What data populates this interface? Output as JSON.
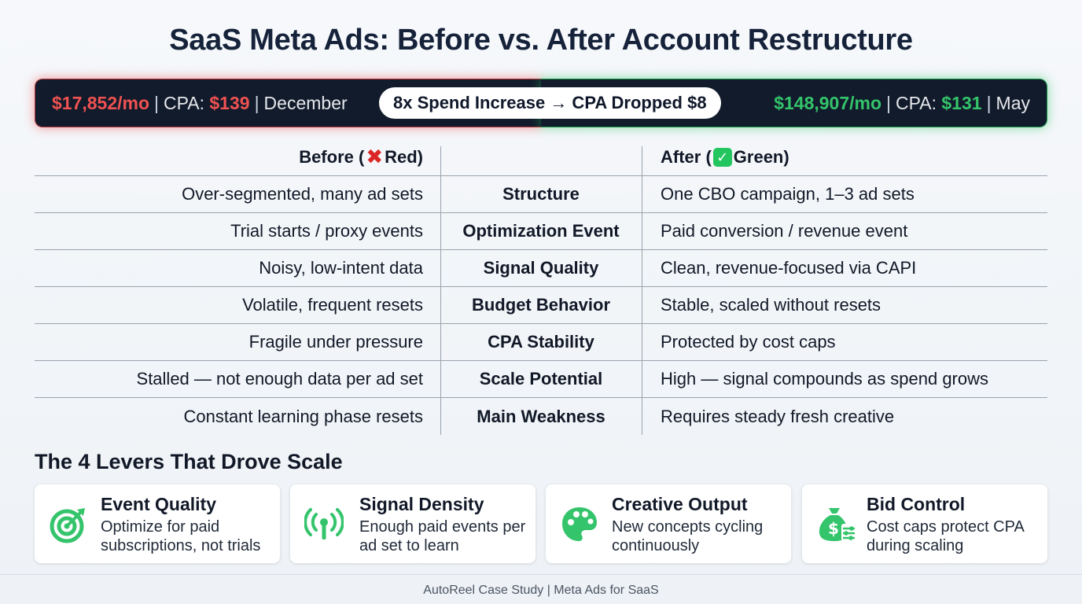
{
  "title": "SaaS Meta Ads: Before vs. After Account Restructure",
  "banner": {
    "before": {
      "spend": "$17,852/mo",
      "cpa_label": "CPA:",
      "cpa": "$139",
      "month": "December"
    },
    "center": "8x Spend Increase → CPA Dropped $8",
    "after": {
      "spend": "$148,907/mo",
      "cpa_label": "CPA:",
      "cpa": "$131",
      "month": "May"
    },
    "colors": {
      "before": "#f05252",
      "after": "#34c46b",
      "background": "#121b2b"
    }
  },
  "table": {
    "header": {
      "before_prefix": "Before (",
      "before_suffix": " Red)",
      "after_prefix": "After (",
      "after_suffix": " Green)",
      "before_icon": "cross-mark-icon",
      "after_icon": "check-mark-icon"
    },
    "rows": [
      {
        "before": "Over-segmented, many ad sets",
        "dimension": "Structure",
        "after": "One CBO campaign, 1–3 ad sets"
      },
      {
        "before": "Trial starts / proxy events",
        "dimension": "Optimization Event",
        "after": "Paid conversion / revenue event"
      },
      {
        "before": "Noisy, low-intent data",
        "dimension": "Signal Quality",
        "after": "Clean, revenue-focused via CAPI"
      },
      {
        "before": "Volatile, frequent resets",
        "dimension": "Budget Behavior",
        "after": "Stable, scaled without resets"
      },
      {
        "before": "Fragile under pressure",
        "dimension": "CPA Stability",
        "after": "Protected by cost caps"
      },
      {
        "before": "Stalled — not enough data per ad set",
        "dimension": "Scale Potential",
        "after": "High — signal compounds as spend grows"
      },
      {
        "before": "Constant learning phase resets",
        "dimension": "Main Weakness",
        "after": "Requires steady fresh creative"
      }
    ]
  },
  "levers": {
    "title": "The 4 Levers That Drove Scale",
    "accent": "#34c46b",
    "items": [
      {
        "title": "Event Quality",
        "desc": "Optimize for paid subscriptions, not trials",
        "icon": "target-icon"
      },
      {
        "title": "Signal Density",
        "desc": "Enough paid events per ad set to learn",
        "icon": "signal-antenna-icon"
      },
      {
        "title": "Creative Output",
        "desc": "New concepts cycling continuously",
        "icon": "palette-icon"
      },
      {
        "title": "Bid Control",
        "desc": "Cost caps protect CPA during scaling",
        "icon": "money-bag-sliders-icon"
      }
    ]
  },
  "footer": "AutoReel Case Study | Meta Ads for SaaS"
}
